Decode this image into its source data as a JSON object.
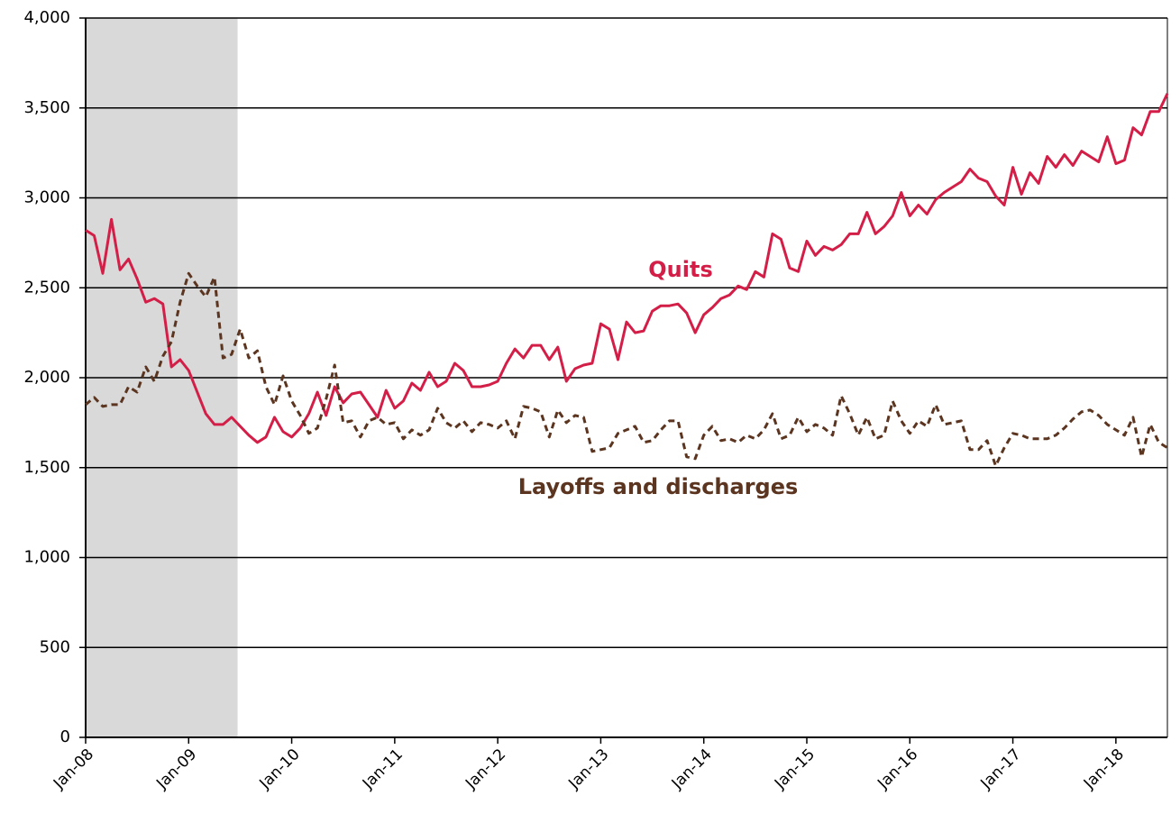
{
  "chart_data": {
    "type": "line",
    "categories": [
      "Jan-08",
      null,
      null,
      null,
      null,
      null,
      null,
      null,
      null,
      null,
      null,
      null,
      "Jan-09",
      null,
      null,
      null,
      null,
      null,
      null,
      null,
      null,
      null,
      null,
      null,
      "Jan-10",
      null,
      null,
      null,
      null,
      null,
      null,
      null,
      null,
      null,
      null,
      null,
      "Jan-11",
      null,
      null,
      null,
      null,
      null,
      null,
      null,
      null,
      null,
      null,
      null,
      "Jan-12",
      null,
      null,
      null,
      null,
      null,
      null,
      null,
      null,
      null,
      null,
      null,
      "Jan-13",
      null,
      null,
      null,
      null,
      null,
      null,
      null,
      null,
      null,
      null,
      null,
      "Jan-14",
      null,
      null,
      null,
      null,
      null,
      null,
      null,
      null,
      null,
      null,
      null,
      "Jan-15",
      null,
      null,
      null,
      null,
      null,
      null,
      null,
      null,
      null,
      null,
      null,
      "Jan-16",
      null,
      null,
      null,
      null,
      null,
      null,
      null,
      null,
      null,
      null,
      null,
      "Jan-17",
      null,
      null,
      null,
      null,
      null,
      null,
      null,
      null,
      null,
      null,
      null,
      "Jan-18",
      null,
      null,
      null,
      null,
      null,
      null
    ],
    "series": [
      {
        "name": "Quits",
        "color": "#d31f48",
        "dash": false,
        "values": [
          2820,
          2790,
          2580,
          2880,
          2600,
          2660,
          2550,
          2420,
          2440,
          2410,
          2060,
          2100,
          2040,
          1920,
          1800,
          1740,
          1740,
          1780,
          1730,
          1680,
          1640,
          1670,
          1780,
          1700,
          1670,
          1720,
          1800,
          1920,
          1790,
          1950,
          1860,
          1910,
          1920,
          1850,
          1780,
          1930,
          1830,
          1870,
          1970,
          1930,
          2030,
          1950,
          1980,
          2080,
          2040,
          1950,
          1950,
          1960,
          1980,
          2080,
          2160,
          2110,
          2180,
          2180,
          2100,
          2170,
          1980,
          2050,
          2070,
          2080,
          2300,
          2270,
          2100,
          2310,
          2250,
          2260,
          2370,
          2400,
          2400,
          2410,
          2360,
          2250,
          2350,
          2390,
          2440,
          2460,
          2510,
          2490,
          2590,
          2560,
          2800,
          2770,
          2610,
          2590,
          2760,
          2680,
          2730,
          2710,
          2740,
          2800,
          2800,
          2920,
          2800,
          2840,
          2900,
          3030,
          2900,
          2960,
          2910,
          2990,
          3030,
          3060,
          3090,
          3160,
          3110,
          3090,
          3010,
          2960,
          3170,
          3020,
          3140,
          3080,
          3230,
          3170,
          3240,
          3180,
          3260,
          3230,
          3200,
          3340,
          3190,
          3210,
          3390,
          3350,
          3480,
          3480,
          3580
        ]
      },
      {
        "name": "Layoffs and discharges",
        "color": "#5b3520",
        "dash": true,
        "values": [
          1850,
          1890,
          1840,
          1850,
          1850,
          1950,
          1920,
          2060,
          1980,
          2120,
          2200,
          2420,
          2580,
          2510,
          2450,
          2560,
          2110,
          2130,
          2270,
          2110,
          2150,
          1950,
          1850,
          2010,
          1870,
          1790,
          1690,
          1720,
          1880,
          2070,
          1750,
          1760,
          1670,
          1760,
          1780,
          1740,
          1750,
          1660,
          1710,
          1680,
          1710,
          1830,
          1750,
          1720,
          1760,
          1700,
          1750,
          1740,
          1720,
          1760,
          1660,
          1840,
          1830,
          1810,
          1670,
          1820,
          1750,
          1790,
          1780,
          1590,
          1600,
          1610,
          1690,
          1710,
          1730,
          1640,
          1650,
          1710,
          1760,
          1760,
          1560,
          1550,
          1680,
          1730,
          1650,
          1660,
          1640,
          1680,
          1660,
          1710,
          1800,
          1660,
          1680,
          1780,
          1700,
          1740,
          1720,
          1680,
          1900,
          1800,
          1680,
          1780,
          1660,
          1680,
          1870,
          1760,
          1690,
          1760,
          1730,
          1850,
          1740,
          1750,
          1760,
          1600,
          1600,
          1650,
          1510,
          1610,
          1690,
          1680,
          1660,
          1660,
          1660,
          1680,
          1720,
          1770,
          1810,
          1820,
          1790,
          1740,
          1710,
          1680,
          1780,
          1560,
          1740,
          1640,
          1610
        ]
      }
    ],
    "shaded_span": [
      0,
      17.7
    ],
    "shade_color": "#d9d9d9",
    "ylim": [
      0,
      4000
    ],
    "yticks": [
      0,
      500,
      {
        "value": 1000,
        "label": "1,000"
      },
      {
        "value": 1500,
        "label": "1,500"
      },
      {
        "value": 2000,
        "label": "2,000"
      },
      {
        "value": 2500,
        "label": "2,500"
      },
      {
        "value": 3000,
        "label": "3,000"
      },
      {
        "value": 3500,
        "label": "3,500"
      },
      {
        "value": 4000,
        "label": "4,000"
      }
    ],
    "grid": true
  }
}
